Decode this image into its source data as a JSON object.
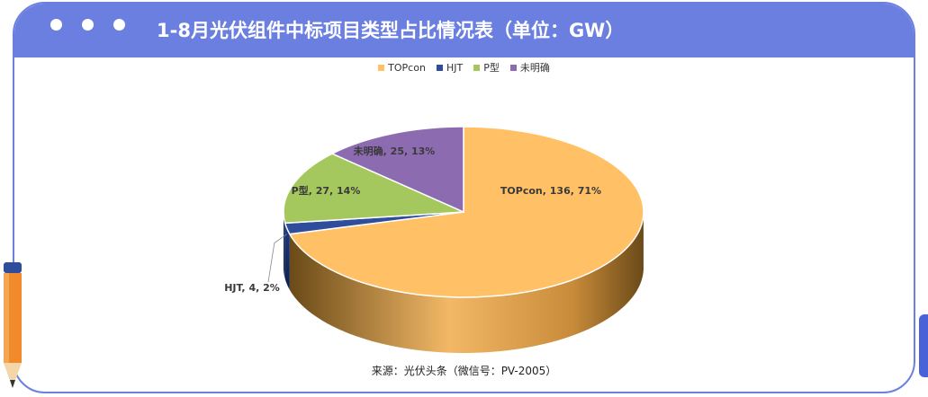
{
  "header": {
    "title": "1-8月光伏组件中标项目类型占比情况表（单位：GW）"
  },
  "chart_data": {
    "type": "pie",
    "title": "1-8月光伏组件中标项目类型占比情况表（单位：GW）",
    "legend_position": "top",
    "series": [
      {
        "name": "TOPcon",
        "value": 136,
        "percent": 71,
        "color": "#ffc066",
        "label": "TOPcon, 136, 71%"
      },
      {
        "name": "HJT",
        "value": 4,
        "percent": 2,
        "color": "#2f4d9a",
        "label": "HJT, 4, 2%"
      },
      {
        "name": "P型",
        "value": 27,
        "percent": 14,
        "color": "#a4c85e",
        "label": "P型, 27, 14%"
      },
      {
        "name": "未明确",
        "value": 25,
        "percent": 13,
        "color": "#8c6bb1",
        "label": "未明确, 25, 13%"
      }
    ]
  },
  "source": "来源：光伏头条（微信号：PV-2005）",
  "colors": {
    "frame": "#6b7fe0",
    "pie_side_dark": "#6a4a18",
    "pie_side_light": "#f2b866"
  }
}
